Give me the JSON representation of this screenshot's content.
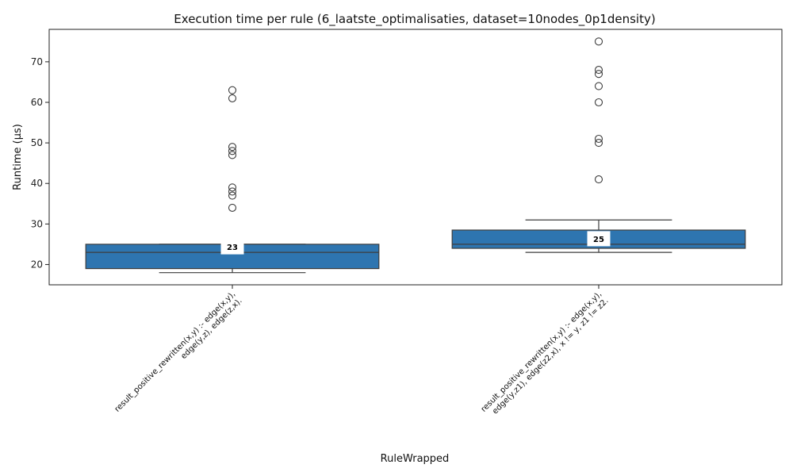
{
  "chart_data": {
    "type": "box",
    "title": "Execution time per rule (6_laatste_optimalisaties, dataset=10nodes_0p1density)",
    "xlabel": "RuleWrapped",
    "ylabel": "Runtime (µs)",
    "ylim": [
      15,
      78
    ],
    "yticks": [
      20,
      30,
      40,
      50,
      60,
      70
    ],
    "grid": false,
    "box_color": "#2e75b0",
    "categories": [
      {
        "label_lines": [
          "result_positive_rewritten(x,y) :-     edge(x,y),",
          "edge(y,z),     edge(z,x)."
        ],
        "whisker_low": 18,
        "q1": 19,
        "median": 23,
        "q3": 25,
        "whisker_high": 25,
        "median_label": "23",
        "outliers": [
          63,
          61,
          49,
          48,
          47,
          39,
          38,
          37,
          34
        ]
      },
      {
        "label_lines": [
          "result_positive_rewritten(x,y) :-     edge(x,y),",
          "edge(y,z1),    edge(z2,x),    x != y,     z1 != z2."
        ],
        "whisker_low": 23,
        "q1": 24,
        "median": 25,
        "q3": 28.5,
        "whisker_high": 31,
        "median_label": "25",
        "outliers": [
          75,
          68,
          67,
          64,
          60,
          51,
          50,
          41
        ]
      }
    ]
  }
}
